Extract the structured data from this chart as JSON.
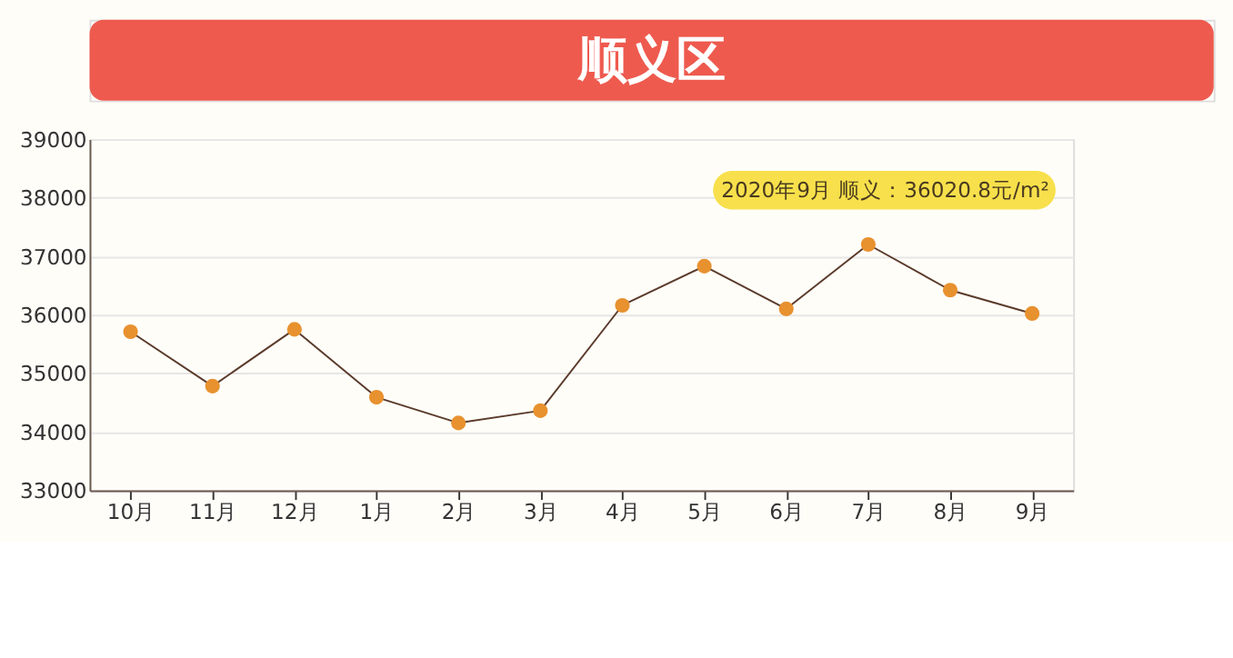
{
  "chart_data": {
    "type": "line",
    "title": "顺义区",
    "categories": [
      "10月",
      "11月",
      "12月",
      "1月",
      "2月",
      "3月",
      "4月",
      "5月",
      "6月",
      "7月",
      "8月",
      "9月"
    ],
    "series": [
      {
        "color": "#e8912f",
        "values": [
          35710,
          34780,
          35750,
          34590,
          34150,
          34360,
          36160,
          36830,
          36100,
          37200,
          36420,
          36020.8
        ]
      }
    ],
    "ylim": [
      33000,
      39000
    ],
    "yticks": [
      33000,
      34000,
      35000,
      36000,
      37000,
      38000,
      39000
    ],
    "grid": "y",
    "marker": "circle",
    "line_style": "solid",
    "annotations": [
      "2020年9月 顺义：36020.8元/m²"
    ]
  }
}
